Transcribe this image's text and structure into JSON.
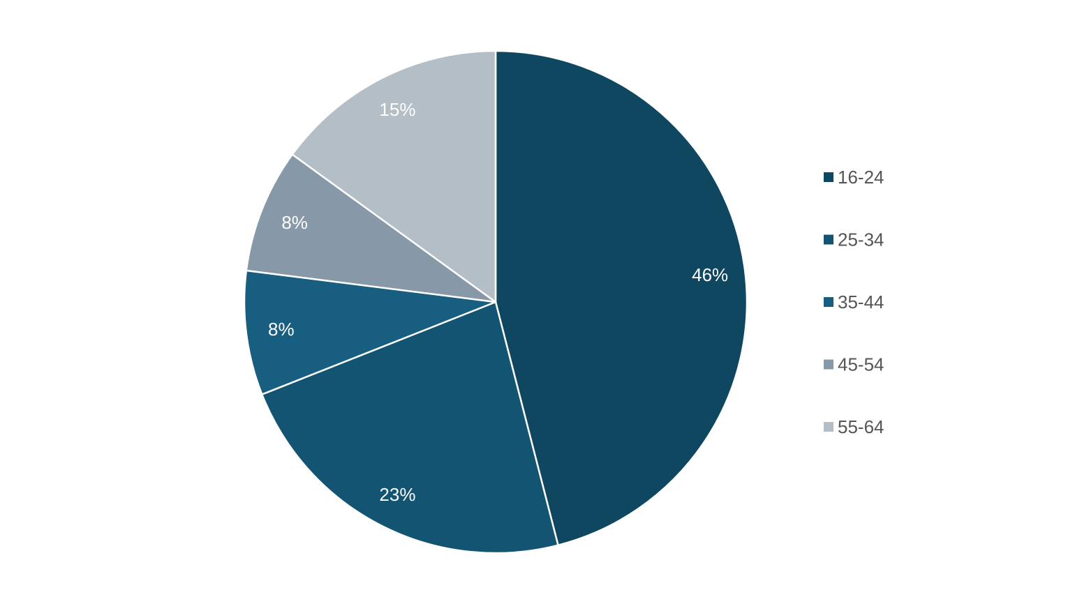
{
  "chart_data": {
    "type": "pie",
    "categories": [
      "16-24",
      "25-34",
      "35-44",
      "45-54",
      "55-64"
    ],
    "values": [
      46,
      23,
      8,
      8,
      15
    ],
    "labels": [
      "46%",
      "23%",
      "8%",
      "8%",
      "15%"
    ],
    "colors": [
      "#0f4761",
      "#135472",
      "#175e80",
      "#8798a9",
      "#b4bec6"
    ],
    "start_angle": "12 o'clock",
    "direction": "clockwise",
    "legend": {
      "position": "right",
      "entries": [
        "16-24",
        "25-34",
        "35-44",
        "45-54",
        "55-64"
      ]
    }
  }
}
